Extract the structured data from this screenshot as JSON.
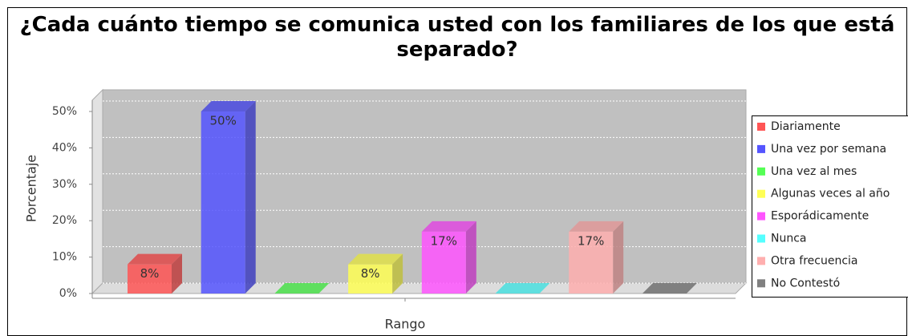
{
  "chart_data": {
    "type": "bar3d",
    "title": "¿Cada cuánto tiempo se comunica usted con los familiares de los que está separado?",
    "x_label": "Rango",
    "y_label": "Porcentaje",
    "series": [
      {
        "name": "Diariamente",
        "color": "#ff5555",
        "values": [
          8
        ],
        "value_labels": [
          "8%"
        ]
      },
      {
        "name": "Una vez por semana",
        "color": "#5555ff",
        "values": [
          50
        ],
        "value_labels": [
          "50%"
        ]
      },
      {
        "name": "Una vez al mes",
        "color": "#55ff55",
        "values": [
          0
        ],
        "value_labels": [
          null
        ]
      },
      {
        "name": "Algunas veces al año",
        "color": "#ffff55",
        "values": [
          8
        ],
        "value_labels": [
          "8%"
        ]
      },
      {
        "name": "Esporádicamente",
        "color": "#ff55ff",
        "values": [
          17
        ],
        "value_labels": [
          "17%"
        ]
      },
      {
        "name": "Nunca",
        "color": "#55ffff",
        "values": [
          0
        ],
        "value_labels": [
          null
        ]
      },
      {
        "name": "Otra frecuencia",
        "color": "#ffafaf",
        "values": [
          17
        ],
        "value_labels": [
          "17%"
        ]
      },
      {
        "name": "No Contestó",
        "color": "#808080",
        "values": [
          0
        ],
        "value_labels": [
          null
        ]
      }
    ],
    "ylim": [
      0,
      50
    ],
    "yticks": [
      {
        "value": 0,
        "label": "0%"
      },
      {
        "value": 10,
        "label": "10%"
      },
      {
        "value": 20,
        "label": "20%"
      },
      {
        "value": 30,
        "label": "30%"
      },
      {
        "value": 40,
        "label": "40%"
      },
      {
        "value": 50,
        "label": "50%"
      }
    ],
    "grid": true,
    "legend": "right"
  }
}
